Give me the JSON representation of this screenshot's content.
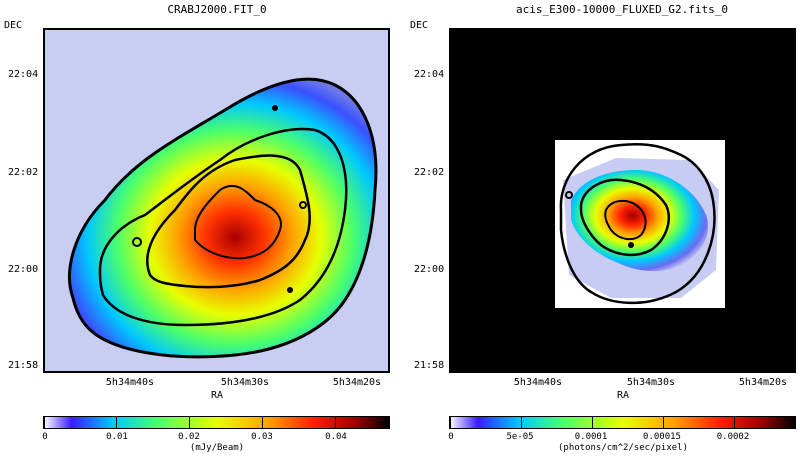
{
  "panels": [
    {
      "title": "CRABJ2000.FIT_0",
      "ylabel": "DEC",
      "xlabel": "RA",
      "dec_ticks": [
        "22:04",
        "22:02",
        "22:00",
        "21:58"
      ],
      "ra_ticks": [
        "5h34m40s",
        "5h34m30s",
        "5h34m20s"
      ],
      "colorbar_ticks": [
        "0",
        "0.01",
        "0.02",
        "0.03",
        "0.04"
      ],
      "colorbar_unit": "(mJy/Beam)"
    },
    {
      "title": "acis_E300-10000_FLUXED_G2.fits_0",
      "ylabel": "DEC",
      "xlabel": "RA",
      "dec_ticks": [
        "22:04",
        "22:02",
        "22:00",
        "21:58"
      ],
      "ra_ticks": [
        "5h34m40s",
        "5h34m30s",
        "5h34m20s"
      ],
      "colorbar_ticks": [
        "0",
        "5e-05",
        "0.0001",
        "0.00015",
        "0.0002"
      ],
      "colorbar_unit": "(photons/cm^2/sec/pixel)"
    }
  ],
  "colormap": [
    "#ffffff",
    "#3a1cff",
    "#00c8ff",
    "#4cff6a",
    "#e8ff00",
    "#ffa000",
    "#ff2000",
    "#a00000",
    "#000000"
  ]
}
